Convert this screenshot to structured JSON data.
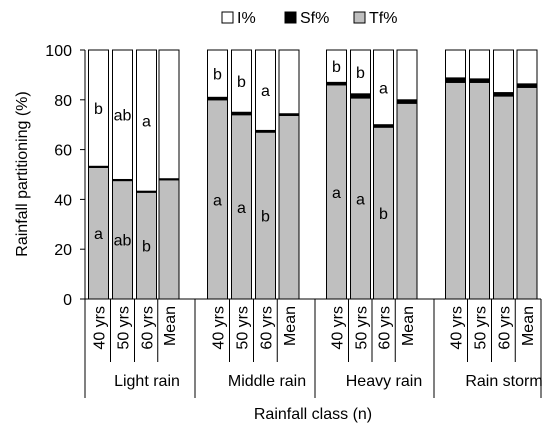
{
  "chart_data": {
    "type": "bar",
    "stacked": true,
    "title": "",
    "xlabel": "Rainfall class (n)",
    "ylabel": "Rainfall partitioning (%)",
    "ylim": [
      0,
      100
    ],
    "yticks": [
      0,
      20,
      40,
      60,
      80,
      100
    ],
    "grid": false,
    "legend_position": "top",
    "legend": [
      {
        "name": "I%",
        "color": "#ffffff"
      },
      {
        "name": "Sf%",
        "color": "#000000"
      },
      {
        "name": "Tf%",
        "color": "#bfbfbf"
      }
    ],
    "groups": [
      "Light rain",
      "Middle rain",
      "Heavy rain",
      "Rain storm"
    ],
    "categories": [
      "40 yrs",
      "50 yrs",
      "60 yrs",
      "Mean"
    ],
    "bars": [
      {
        "group": "Light rain",
        "category": "40 yrs",
        "Tf": 53,
        "Sf": 0.3,
        "I": 46.7,
        "tf_letter": "a",
        "i_letter": "b"
      },
      {
        "group": "Light rain",
        "category": "50 yrs",
        "Tf": 47.7,
        "Sf": 0.3,
        "I": 52,
        "tf_letter": "ab",
        "i_letter": "ab"
      },
      {
        "group": "Light rain",
        "category": "60 yrs",
        "Tf": 43,
        "Sf": 0.3,
        "I": 56.7,
        "tf_letter": "b",
        "i_letter": "a"
      },
      {
        "group": "Light rain",
        "category": "Mean",
        "Tf": 48,
        "Sf": 0.3,
        "I": 51.7,
        "tf_letter": "",
        "i_letter": ""
      },
      {
        "group": "Middle rain",
        "category": "40 yrs",
        "Tf": 80,
        "Sf": 1,
        "I": 19,
        "tf_letter": "a",
        "i_letter": "b"
      },
      {
        "group": "Middle rain",
        "category": "50 yrs",
        "Tf": 74,
        "Sf": 1,
        "I": 25,
        "tf_letter": "a",
        "i_letter": "b"
      },
      {
        "group": "Middle rain",
        "category": "60 yrs",
        "Tf": 67,
        "Sf": 0.7,
        "I": 32.3,
        "tf_letter": "b",
        "i_letter": "a"
      },
      {
        "group": "Middle rain",
        "category": "Mean",
        "Tf": 73.7,
        "Sf": 0.7,
        "I": 25.6,
        "tf_letter": "",
        "i_letter": ""
      },
      {
        "group": "Heavy rain",
        "category": "40 yrs",
        "Tf": 86,
        "Sf": 1,
        "I": 13,
        "tf_letter": "a",
        "i_letter": "b"
      },
      {
        "group": "Heavy rain",
        "category": "50 yrs",
        "Tf": 80.7,
        "Sf": 1.7,
        "I": 17.6,
        "tf_letter": "a",
        "i_letter": "b"
      },
      {
        "group": "Heavy rain",
        "category": "60 yrs",
        "Tf": 69,
        "Sf": 1,
        "I": 30,
        "tf_letter": "b",
        "i_letter": "a"
      },
      {
        "group": "Heavy rain",
        "category": "Mean",
        "Tf": 78.6,
        "Sf": 1.4,
        "I": 20,
        "tf_letter": "",
        "i_letter": ""
      },
      {
        "group": "Rain storm",
        "category": "40 yrs",
        "Tf": 87,
        "Sf": 1.8,
        "I": 11.2,
        "tf_letter": "",
        "i_letter": ""
      },
      {
        "group": "Rain storm",
        "category": "50 yrs",
        "Tf": 87,
        "Sf": 1.4,
        "I": 11.6,
        "tf_letter": "",
        "i_letter": ""
      },
      {
        "group": "Rain storm",
        "category": "60 yrs",
        "Tf": 81.5,
        "Sf": 1.4,
        "I": 17.1,
        "tf_letter": "",
        "i_letter": ""
      },
      {
        "group": "Rain storm",
        "category": "Mean",
        "Tf": 85,
        "Sf": 1.4,
        "I": 13.6,
        "tf_letter": "",
        "i_letter": ""
      }
    ]
  }
}
